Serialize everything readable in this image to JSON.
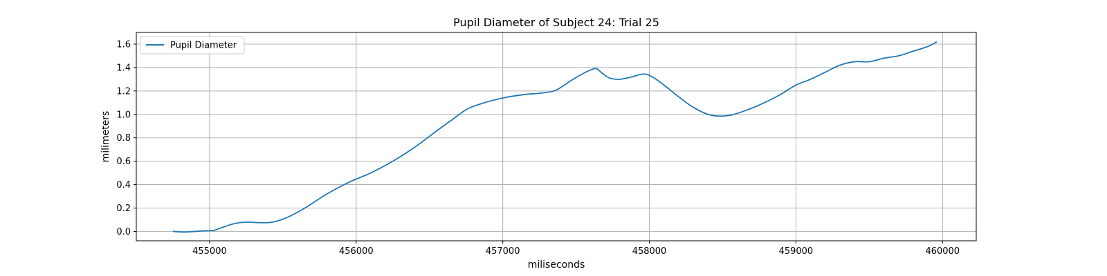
{
  "chart_data": {
    "type": "line",
    "title": "Pupil Diameter of Subject 24: Trial 25",
    "xlabel": "miliseconds",
    "ylabel": "milimeters",
    "xlim": [
      454500,
      460230
    ],
    "ylim": [
      -0.08,
      1.7
    ],
    "xticks": [
      455000,
      456000,
      457000,
      458000,
      459000,
      460000
    ],
    "yticks": [
      0.0,
      0.2,
      0.4,
      0.6,
      0.8,
      1.0,
      1.2,
      1.4,
      1.6
    ],
    "xtick_labels": [
      "455000",
      "456000",
      "457000",
      "458000",
      "459000",
      "460000"
    ],
    "ytick_labels": [
      "0.0",
      "0.2",
      "0.4",
      "0.6",
      "0.8",
      "1.0",
      "1.2",
      "1.4",
      "1.6"
    ],
    "grid": true,
    "legend_position": "upper-left",
    "series": [
      {
        "name": "Pupil Diameter",
        "color": "#1f77b4",
        "x": [
          454750,
          454830,
          454900,
          454960,
          455030,
          455100,
          455180,
          455260,
          455340,
          455430,
          455530,
          455650,
          455800,
          455950,
          456100,
          456250,
          456400,
          456550,
          456650,
          456750,
          456850,
          457000,
          457150,
          457250,
          457350,
          457420,
          457480,
          457550,
          457600,
          457640,
          457680,
          457730,
          457800,
          457880,
          457960,
          458020,
          458100,
          458200,
          458300,
          458400,
          458480,
          458560,
          458650,
          458750,
          458880,
          459000,
          459100,
          459200,
          459300,
          459400,
          459500,
          459600,
          459700,
          459800,
          459900,
          459960
        ],
        "y": [
          0.0,
          -0.005,
          0.0,
          0.005,
          0.01,
          0.04,
          0.07,
          0.08,
          0.075,
          0.08,
          0.12,
          0.2,
          0.32,
          0.42,
          0.5,
          0.6,
          0.72,
          0.86,
          0.95,
          1.04,
          1.09,
          1.14,
          1.17,
          1.18,
          1.2,
          1.25,
          1.3,
          1.35,
          1.38,
          1.39,
          1.35,
          1.31,
          1.3,
          1.32,
          1.345,
          1.32,
          1.25,
          1.15,
          1.06,
          1.0,
          0.985,
          0.995,
          1.03,
          1.08,
          1.16,
          1.25,
          1.3,
          1.36,
          1.42,
          1.45,
          1.45,
          1.48,
          1.5,
          1.54,
          1.58,
          1.62
        ]
      }
    ]
  }
}
